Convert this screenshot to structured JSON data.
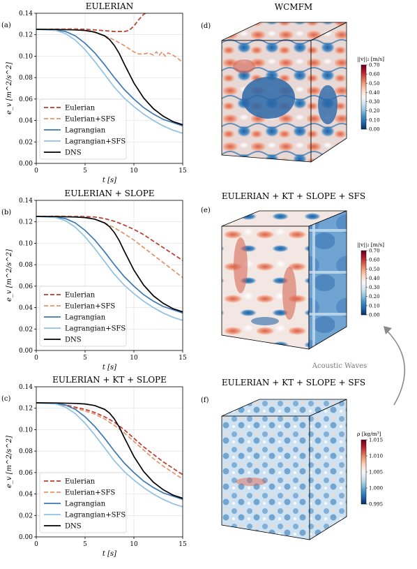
{
  "chart_data": [
    {
      "type": "line",
      "panel": "(a)",
      "title": "EULERIAN",
      "xlabel": "t [s]",
      "ylabel": "e_v [m^2/s^2]",
      "xlim": [
        0,
        15
      ],
      "ylim": [
        0.0,
        0.14
      ],
      "xticks": [
        "0",
        "5",
        "10",
        "15"
      ],
      "yticks": [
        "0.00",
        "0.02",
        "0.04",
        "0.06",
        "0.08",
        "0.10",
        "0.12",
        "0.14"
      ],
      "grid": true,
      "legend_position": "lower-left",
      "series": [
        {
          "name": "Eulerian",
          "style": "dashed",
          "color": "#c0392b",
          "x": [
            0,
            2,
            4,
            6,
            8,
            9,
            9.5,
            10,
            10.5,
            11,
            11.2
          ],
          "y": [
            0.125,
            0.1252,
            0.1255,
            0.1245,
            0.123,
            0.123,
            0.124,
            0.128,
            0.134,
            0.139,
            0.14
          ]
        },
        {
          "name": "Eulerian+SFS",
          "style": "dashed",
          "color": "#e8926a",
          "x": [
            0,
            2,
            4,
            5,
            6,
            7,
            8,
            9,
            10,
            10.5,
            11,
            11.5,
            12,
            12.3,
            12.6,
            12.9,
            13.2,
            13.5,
            14,
            14.5,
            15
          ],
          "y": [
            0.125,
            0.1252,
            0.125,
            0.124,
            0.122,
            0.119,
            0.115,
            0.11,
            0.104,
            0.102,
            0.102,
            0.103,
            0.101,
            0.104,
            0.101,
            0.104,
            0.1,
            0.103,
            0.101,
            0.098,
            0.094
          ]
        },
        {
          "name": "Lagrangian",
          "style": "solid",
          "color": "#3a78b5",
          "x": [
            0,
            2,
            3,
            4,
            5,
            6,
            7,
            8,
            9,
            10,
            11,
            12,
            13,
            14,
            15
          ],
          "y": [
            0.125,
            0.1245,
            0.123,
            0.119,
            0.112,
            0.103,
            0.092,
            0.08,
            0.069,
            0.06,
            0.052,
            0.046,
            0.041,
            0.038,
            0.035
          ]
        },
        {
          "name": "Lagrangian+SFS",
          "style": "solid",
          "color": "#8fc1e3",
          "x": [
            0,
            2,
            3,
            4,
            5,
            6,
            7,
            8,
            9,
            10,
            11,
            12,
            13,
            14,
            15
          ],
          "y": [
            0.125,
            0.124,
            0.121,
            0.115,
            0.106,
            0.095,
            0.083,
            0.071,
            0.061,
            0.053,
            0.046,
            0.04,
            0.035,
            0.031,
            0.028
          ]
        },
        {
          "name": "DNS",
          "style": "solid",
          "color": "#000000",
          "x": [
            0,
            2,
            4,
            5,
            6,
            7,
            7.5,
            8,
            8.5,
            9,
            9.5,
            10,
            11,
            12,
            13,
            14,
            15
          ],
          "y": [
            0.125,
            0.1249,
            0.1245,
            0.124,
            0.1225,
            0.119,
            0.1155,
            0.11,
            0.1025,
            0.093,
            0.084,
            0.075,
            0.061,
            0.051,
            0.044,
            0.039,
            0.036
          ]
        }
      ]
    },
    {
      "type": "line",
      "panel": "(b)",
      "title": "EULERIAN + SLOPE",
      "xlabel": "t [s]",
      "ylabel": "e_v [m^2/s^2]",
      "xlim": [
        0,
        15
      ],
      "ylim": [
        0.0,
        0.14
      ],
      "xticks": [
        "0",
        "5",
        "10",
        "15"
      ],
      "yticks": [
        "0.00",
        "0.02",
        "0.04",
        "0.06",
        "0.08",
        "0.10",
        "0.12",
        "0.14"
      ],
      "grid": true,
      "legend_position": "lower-left",
      "series": [
        {
          "name": "Eulerian",
          "style": "dashed",
          "color": "#c0392b",
          "x": [
            0,
            2,
            4,
            6,
            7,
            8,
            9,
            10,
            11,
            12,
            13,
            14,
            15
          ],
          "y": [
            0.125,
            0.1252,
            0.1252,
            0.1245,
            0.123,
            0.1205,
            0.117,
            0.113,
            0.108,
            0.102,
            0.096,
            0.09,
            0.084
          ]
        },
        {
          "name": "Eulerian+SFS",
          "style": "dashed",
          "color": "#e8926a",
          "x": [
            0,
            2,
            4,
            5,
            6,
            7,
            8,
            9,
            10,
            11,
            12,
            13,
            14,
            15
          ],
          "y": [
            0.125,
            0.1252,
            0.125,
            0.1242,
            0.1225,
            0.119,
            0.1145,
            0.109,
            0.103,
            0.096,
            0.089,
            0.082,
            0.075,
            0.068
          ]
        },
        {
          "name": "Lagrangian",
          "style": "solid",
          "color": "#3a78b5",
          "x": [
            0,
            2,
            3,
            4,
            5,
            6,
            7,
            8,
            9,
            10,
            11,
            12,
            13,
            14,
            15
          ],
          "y": [
            0.125,
            0.1245,
            0.123,
            0.119,
            0.112,
            0.103,
            0.092,
            0.08,
            0.069,
            0.06,
            0.052,
            0.046,
            0.041,
            0.038,
            0.035
          ]
        },
        {
          "name": "Lagrangian+SFS",
          "style": "solid",
          "color": "#8fc1e3",
          "x": [
            0,
            2,
            3,
            4,
            5,
            6,
            7,
            8,
            9,
            10,
            11,
            12,
            13,
            14,
            15
          ],
          "y": [
            0.125,
            0.124,
            0.121,
            0.115,
            0.106,
            0.095,
            0.083,
            0.071,
            0.061,
            0.053,
            0.046,
            0.04,
            0.035,
            0.031,
            0.028
          ]
        },
        {
          "name": "DNS",
          "style": "solid",
          "color": "#000000",
          "x": [
            0,
            2,
            4,
            5,
            6,
            7,
            7.5,
            8,
            8.5,
            9,
            9.5,
            10,
            11,
            12,
            13,
            14,
            15
          ],
          "y": [
            0.125,
            0.1249,
            0.1245,
            0.124,
            0.1225,
            0.119,
            0.1155,
            0.11,
            0.1025,
            0.093,
            0.084,
            0.075,
            0.061,
            0.051,
            0.044,
            0.039,
            0.036
          ]
        }
      ]
    },
    {
      "type": "line",
      "panel": "(c)",
      "title": "EULERIAN + KT + SLOPE",
      "xlabel": "t [s]",
      "ylabel": "e_v [m^2/s^2]",
      "xlim": [
        0,
        15
      ],
      "ylim": [
        0.0,
        0.14
      ],
      "xticks": [
        "0",
        "5",
        "10",
        "15"
      ],
      "yticks": [
        "0.00",
        "0.02",
        "0.04",
        "0.06",
        "0.08",
        "0.10",
        "0.12",
        "0.14"
      ],
      "grid": true,
      "legend_position": "lower-left",
      "series": [
        {
          "name": "Eulerian",
          "style": "dashed",
          "color": "#c0392b",
          "x": [
            0,
            2,
            3,
            4,
            5,
            6,
            7,
            8,
            9,
            10,
            11,
            12,
            13,
            14,
            15
          ],
          "y": [
            0.125,
            0.1245,
            0.123,
            0.121,
            0.119,
            0.116,
            0.112,
            0.107,
            0.1,
            0.092,
            0.084,
            0.077,
            0.07,
            0.064,
            0.058
          ]
        },
        {
          "name": "Eulerian+SFS",
          "style": "dashed",
          "color": "#e8926a",
          "x": [
            0,
            2,
            3,
            4,
            5,
            6,
            7,
            8,
            9,
            10,
            11,
            12,
            13,
            14,
            15
          ],
          "y": [
            0.125,
            0.1244,
            0.1225,
            0.12,
            0.1175,
            0.1145,
            0.11,
            0.104,
            0.097,
            0.089,
            0.081,
            0.073,
            0.066,
            0.06,
            0.054
          ]
        },
        {
          "name": "Lagrangian",
          "style": "solid",
          "color": "#3a78b5",
          "x": [
            0,
            2,
            3,
            4,
            5,
            6,
            7,
            8,
            9,
            10,
            11,
            12,
            13,
            14,
            15
          ],
          "y": [
            0.125,
            0.1245,
            0.123,
            0.119,
            0.112,
            0.103,
            0.092,
            0.08,
            0.069,
            0.06,
            0.052,
            0.046,
            0.041,
            0.038,
            0.035
          ]
        },
        {
          "name": "Lagrangian+SFS",
          "style": "solid",
          "color": "#8fc1e3",
          "x": [
            0,
            2,
            3,
            4,
            5,
            6,
            7,
            8,
            9,
            10,
            11,
            12,
            13,
            14,
            15
          ],
          "y": [
            0.125,
            0.124,
            0.121,
            0.115,
            0.106,
            0.095,
            0.083,
            0.071,
            0.061,
            0.053,
            0.046,
            0.04,
            0.035,
            0.031,
            0.028
          ]
        },
        {
          "name": "DNS",
          "style": "solid",
          "color": "#000000",
          "x": [
            0,
            2,
            4,
            5,
            6,
            7,
            7.5,
            8,
            8.5,
            9,
            9.5,
            10,
            11,
            12,
            13,
            14,
            15
          ],
          "y": [
            0.125,
            0.1249,
            0.1245,
            0.124,
            0.1225,
            0.119,
            0.1155,
            0.11,
            0.1025,
            0.093,
            0.084,
            0.075,
            0.061,
            0.051,
            0.044,
            0.039,
            0.036
          ]
        }
      ]
    }
  ],
  "fields": [
    {
      "panel": "(d)",
      "title": "WCMFM",
      "colorbar_title": "||v||₂ [m/s]",
      "colorbar_ticks": [
        "0.70",
        "0.60",
        "0.50",
        "0.40",
        "0.30",
        "0.20",
        "0.10",
        "0.00"
      ],
      "colormap": [
        "#67001f",
        "#b2182b",
        "#d6604d",
        "#f4a582",
        "#fddbc7",
        "#f7f7f7",
        "#d1e5f0",
        "#92c5de",
        "#4393c3",
        "#2166ac",
        "#053061"
      ]
    },
    {
      "panel": "(e)",
      "title": "EULERIAN + KT + SLOPE + SFS",
      "colorbar_title": "||v||₂ [m/s]",
      "colorbar_ticks": [
        "0.70",
        "0.60",
        "0.50",
        "0.40",
        "0.30",
        "0.20",
        "0.10",
        "0.00"
      ],
      "colormap": [
        "#67001f",
        "#b2182b",
        "#d6604d",
        "#f4a582",
        "#fddbc7",
        "#f7f7f7",
        "#d1e5f0",
        "#92c5de",
        "#4393c3",
        "#2166ac",
        "#053061"
      ]
    },
    {
      "panel": "(f)",
      "title": "EULERIAN + KT + SLOPE + SFS",
      "colorbar_title": "ρ [kg/m³]",
      "colorbar_ticks": [
        "1.015",
        "1.010",
        "1.005",
        "1.000",
        "0.995"
      ],
      "colormap": [
        "#67001f",
        "#b2182b",
        "#d6604d",
        "#f4a582",
        "#fddbc7",
        "#f7f7f7",
        "#d1e5f0",
        "#92c5de",
        "#4393c3",
        "#2166ac",
        "#053061"
      ]
    }
  ],
  "annotation": {
    "arrow_label": "Acoustic Waves"
  }
}
